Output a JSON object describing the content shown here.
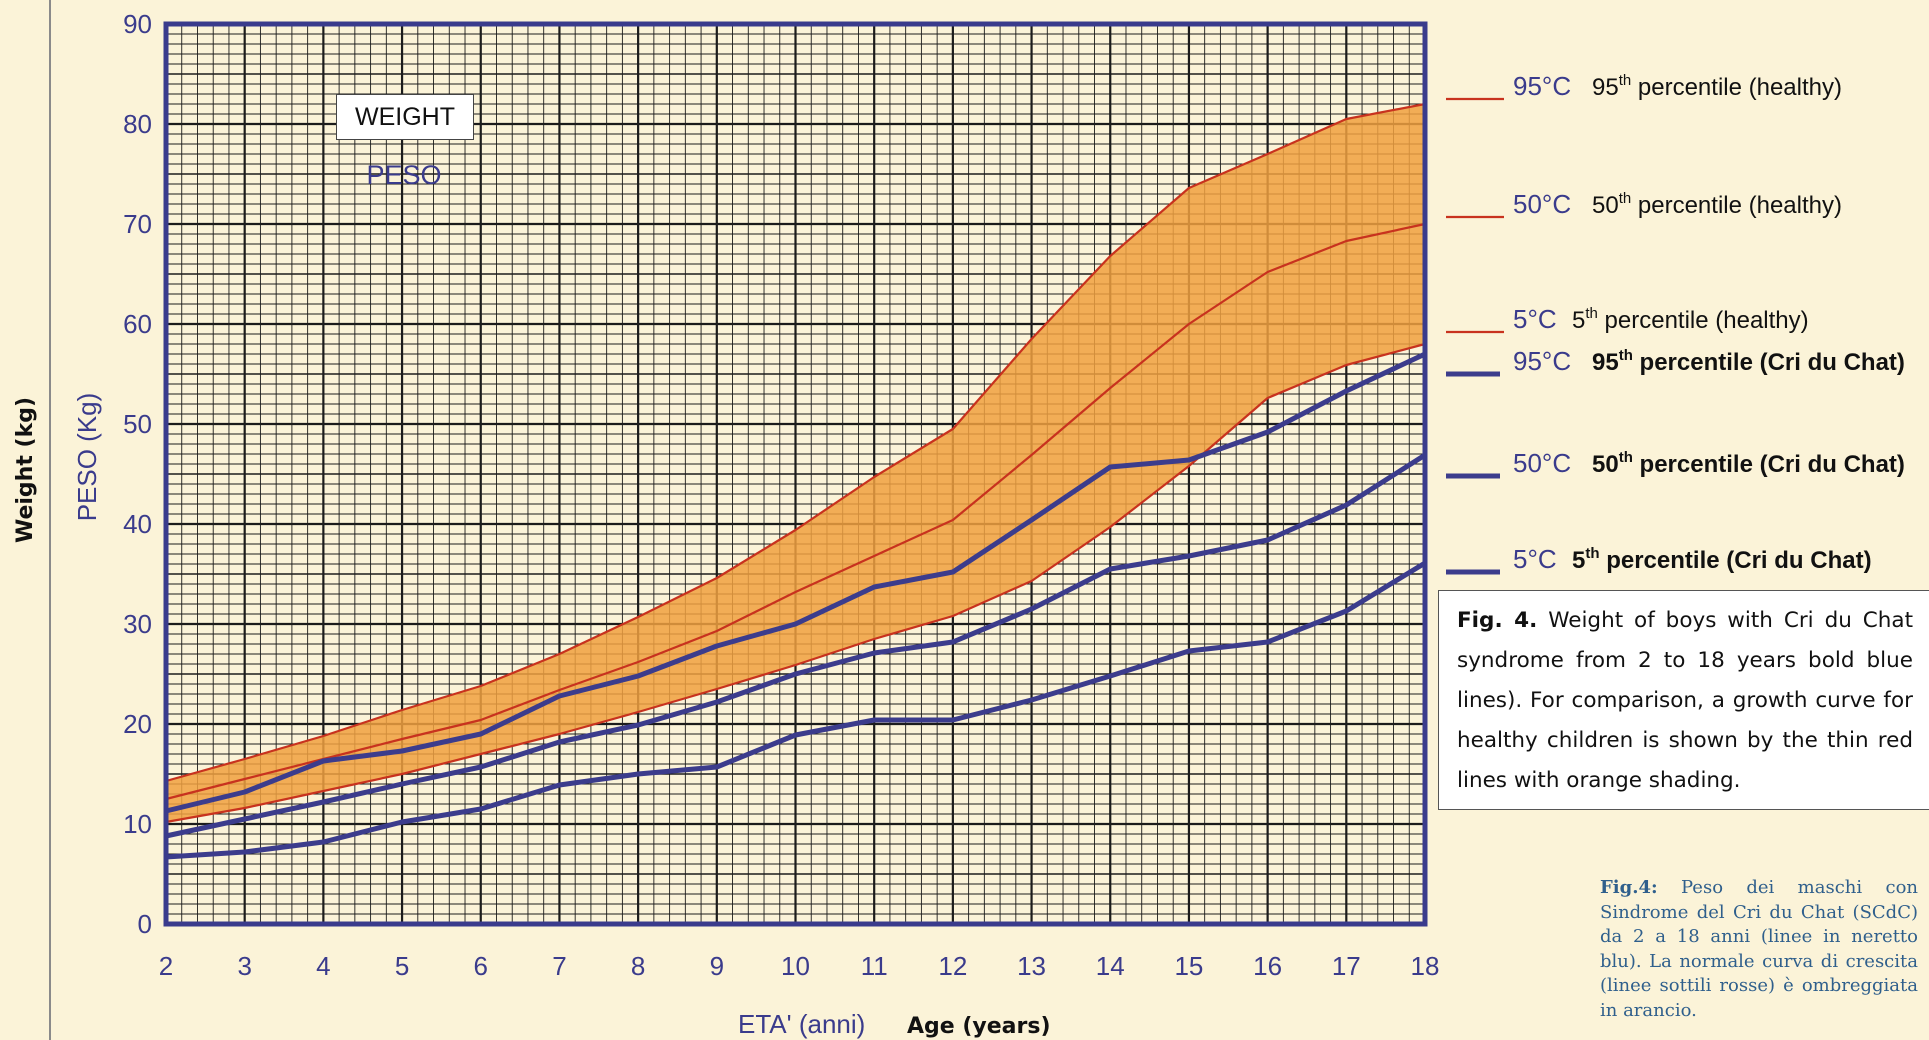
{
  "labels": {
    "y_en": "Weight (kg)",
    "y_it": "PESO (Kg)",
    "x_it": "ETA' (anni)",
    "x_en": "Age (years)",
    "weight_box": "WEIGHT",
    "peso_box": "PESO"
  },
  "legend": [
    {
      "code": "95°C",
      "text": "95",
      "sup": "th",
      "rest": " percentile (healthy)",
      "style": "thin-red",
      "bold": false
    },
    {
      "code": "50°C",
      "text": "50",
      "sup": "th",
      "rest": " percentile (healthy)",
      "style": "thin-red",
      "bold": false
    },
    {
      "code": "5°C",
      "text": "5",
      "sup": "th",
      "rest": " percentile (healthy)",
      "style": "thin-red",
      "bold": false
    },
    {
      "code": "95°C",
      "text": "95",
      "sup": "th",
      "rest": " percentile (Cri du Chat)",
      "style": "bold-blue",
      "bold": true
    },
    {
      "code": "50°C",
      "text": "50",
      "sup": "th",
      "rest": " percentile (Cri du Chat)",
      "style": "bold-blue",
      "bold": true
    },
    {
      "code": "5°C",
      "text": "5",
      "sup": "th",
      "rest": " percentile (Cri du Chat)",
      "style": "bold-blue",
      "bold": true
    }
  ],
  "caption_en": {
    "lead": "Fig. 4.",
    "body": " Weight of boys with Cri du Chat syndrome from 2 to 18 years bold blue lines). For comparison, a growth curve for healthy children is shown by the thin red lines with orange shading."
  },
  "caption_it": {
    "lead": "Fig.4:",
    "body": " Peso dei maschi con Sindrome del Cri du Chat (SCdC) da 2 a 18 anni (linee in neretto blu). La normale curva di crescita (linee sottili rosse) è ombreggiata in arancio."
  },
  "colors": {
    "background": "#fbf3d8",
    "grid": "#1c1c1c",
    "frame": "#3a3b8c",
    "band": "#f0a040",
    "healthy_line": "#c8321e",
    "cdc_line": "#3c3c8c"
  },
  "chart_data": {
    "type": "line",
    "xlabel": "ETA' (anni)  Age (years)",
    "ylabel": "PESO (Kg)  Weight (kg)",
    "xlim": [
      2,
      18
    ],
    "ylim": [
      0,
      90
    ],
    "xticks": [
      2,
      3,
      4,
      5,
      6,
      7,
      8,
      9,
      10,
      11,
      12,
      13,
      14,
      15,
      16,
      17,
      18
    ],
    "yticks": [
      0,
      10,
      20,
      30,
      40,
      50,
      60,
      70,
      80,
      90
    ],
    "grid": true,
    "shaded_band": "between healthy 5th and 95th percentile",
    "x": [
      2,
      3,
      4,
      5,
      6,
      7,
      8,
      9,
      10,
      11,
      12,
      13,
      14,
      15,
      16,
      17,
      18
    ],
    "series": [
      {
        "name": "95th percentile (healthy)",
        "style": "thin-red",
        "values": [
          14.3,
          16.5,
          18.8,
          21.4,
          23.8,
          27.0,
          30.7,
          34.6,
          39.4,
          44.7,
          49.5,
          58.5,
          66.8,
          73.6,
          77.0,
          80.5,
          82.0
        ]
      },
      {
        "name": "50th percentile (healthy)",
        "style": "thin-red",
        "values": [
          12.5,
          14.5,
          16.5,
          18.5,
          20.4,
          23.4,
          26.2,
          29.3,
          33.2,
          36.8,
          40.4,
          46.9,
          53.6,
          60.0,
          65.2,
          68.3,
          70.0
        ]
      },
      {
        "name": "5th percentile (healthy)",
        "style": "thin-red",
        "values": [
          10.2,
          11.6,
          13.3,
          15.0,
          17.0,
          19.0,
          21.2,
          23.5,
          25.9,
          28.5,
          30.8,
          34.3,
          39.7,
          45.8,
          52.6,
          55.9,
          58.0
        ]
      },
      {
        "name": "95th percentile (Cri du Chat)",
        "style": "bold-blue",
        "values": [
          11.3,
          13.2,
          16.3,
          17.3,
          19.0,
          22.8,
          24.8,
          27.8,
          30.0,
          33.7,
          35.2,
          40.4,
          45.7,
          46.4,
          49.2,
          53.3,
          57.0
        ]
      },
      {
        "name": "50th percentile (Cri du Chat)",
        "style": "bold-blue",
        "values": [
          8.8,
          10.5,
          12.2,
          14.0,
          15.7,
          18.2,
          19.9,
          22.2,
          25.0,
          27.1,
          28.2,
          31.5,
          35.5,
          36.8,
          38.4,
          41.9,
          46.9
        ]
      },
      {
        "name": "5th percentile (Cri du Chat)",
        "style": "bold-blue",
        "values": [
          6.7,
          7.2,
          8.2,
          10.2,
          11.5,
          13.9,
          15.0,
          15.7,
          18.9,
          20.4,
          20.4,
          22.4,
          24.8,
          27.3,
          28.2,
          31.3,
          36.1
        ]
      }
    ]
  }
}
